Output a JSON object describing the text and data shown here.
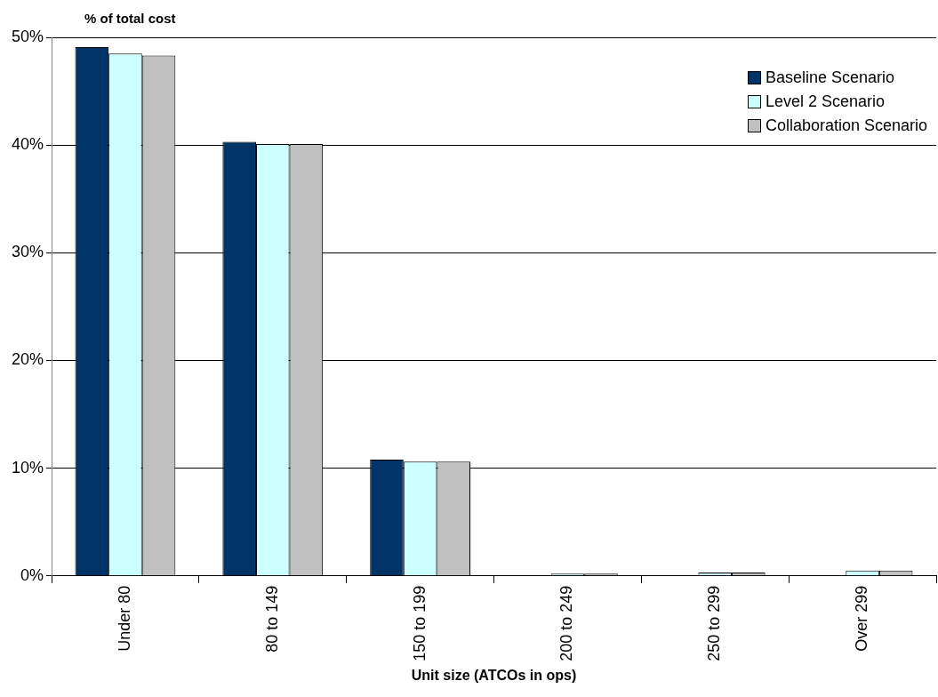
{
  "chart_data": {
    "type": "bar",
    "ylabel": "% of total cost",
    "xlabel": "Unit size (ATCOs in ops)",
    "categories": [
      "Under 80",
      "80 to 149",
      "150 to 199",
      "200 to 249",
      "250 to 299",
      "Over 299"
    ],
    "series": [
      {
        "name": "Baseline Scenario",
        "color": "#003366",
        "values": [
          49.1,
          40.3,
          10.8,
          0,
          0,
          0
        ]
      },
      {
        "name": "Level 2 Scenario",
        "color": "#ccffff",
        "values": [
          48.5,
          40.1,
          10.6,
          0.2,
          0.3,
          0.5
        ]
      },
      {
        "name": "Collaboration Scenario",
        "color": "#c0c0c0",
        "values": [
          48.3,
          40.1,
          10.6,
          0.2,
          0.3,
          0.5
        ]
      }
    ],
    "ylim": [
      0,
      50
    ],
    "yticks": [
      {
        "value": 0,
        "label": "0%"
      },
      {
        "value": 10,
        "label": "10%"
      },
      {
        "value": 20,
        "label": "20%"
      },
      {
        "value": 30,
        "label": "30%"
      },
      {
        "value": 40,
        "label": "40%"
      },
      {
        "value": 50,
        "label": "50%"
      }
    ],
    "grid": "y",
    "legend": "top right"
  }
}
